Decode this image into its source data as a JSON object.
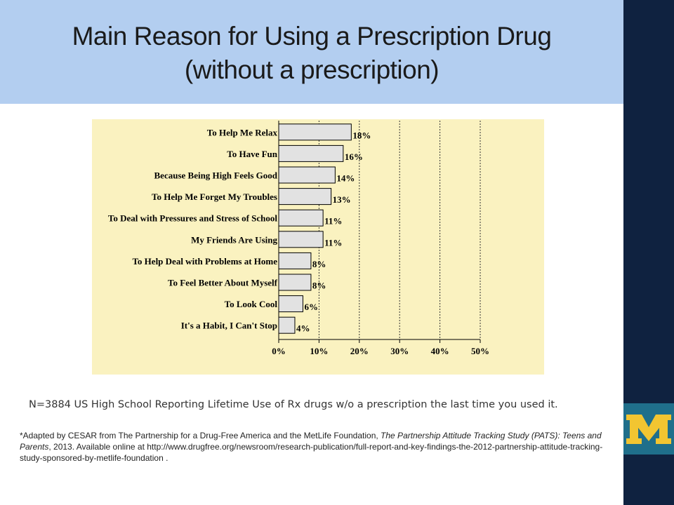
{
  "slide": {
    "title_line1": "Main Reason for Using a Prescription Drug",
    "title_line2": "(without a prescription)",
    "note": "N=3884 US High School Reporting Lifetime Use of Rx drugs w/o a prescription the last time you used it.",
    "source_prefix": "*Adapted by CESAR from The Partnership for a Drug-Free America and the MetLife Foundation, ",
    "source_italic": "The Partnership Attitude Tracking Study (PATS): Teens and Parents",
    "source_suffix": ", 2013. Available online at http://www.drugfree.org/newsroom/research-publication/full-report-and-key-findings-the-2012-partnership-attitude-tracking-study-sponsored-by-metlife-foundation ."
  },
  "colors": {
    "title_band": "#b3cef0",
    "right_bar": "#0f2240",
    "logo_maize": "#f2c531",
    "logo_tile": "#1f6f8b",
    "chart_background": "#faf2c0",
    "bar_fill": "#e2e2e2"
  },
  "logo": {
    "icon": "block-m-logo"
  },
  "chart_data": {
    "type": "bar",
    "orientation": "horizontal",
    "categories": [
      "To Help Me Relax",
      "To Have Fun",
      "Because Being High Feels Good",
      "To Help Me Forget My Troubles",
      "To Deal with Pressures and Stress of School",
      "My Friends Are Using",
      "To Help Deal with Problems at Home",
      "To Feel Better About Myself",
      "To Look Cool",
      "It's a Habit, I Can't Stop"
    ],
    "values": [
      18,
      16,
      14,
      13,
      11,
      11,
      8,
      8,
      6,
      4
    ],
    "data_labels": [
      "18%",
      "16%",
      "14%",
      "13%",
      "11%",
      "11%",
      "8%",
      "8%",
      "6%",
      "4%"
    ],
    "x_ticks": [
      0,
      10,
      20,
      30,
      40,
      50
    ],
    "x_tick_labels": [
      "0%",
      "10%",
      "20%",
      "30%",
      "40%",
      "50%"
    ],
    "xlim": [
      0,
      50
    ],
    "grid": "vertical dashed",
    "legend": "none"
  }
}
